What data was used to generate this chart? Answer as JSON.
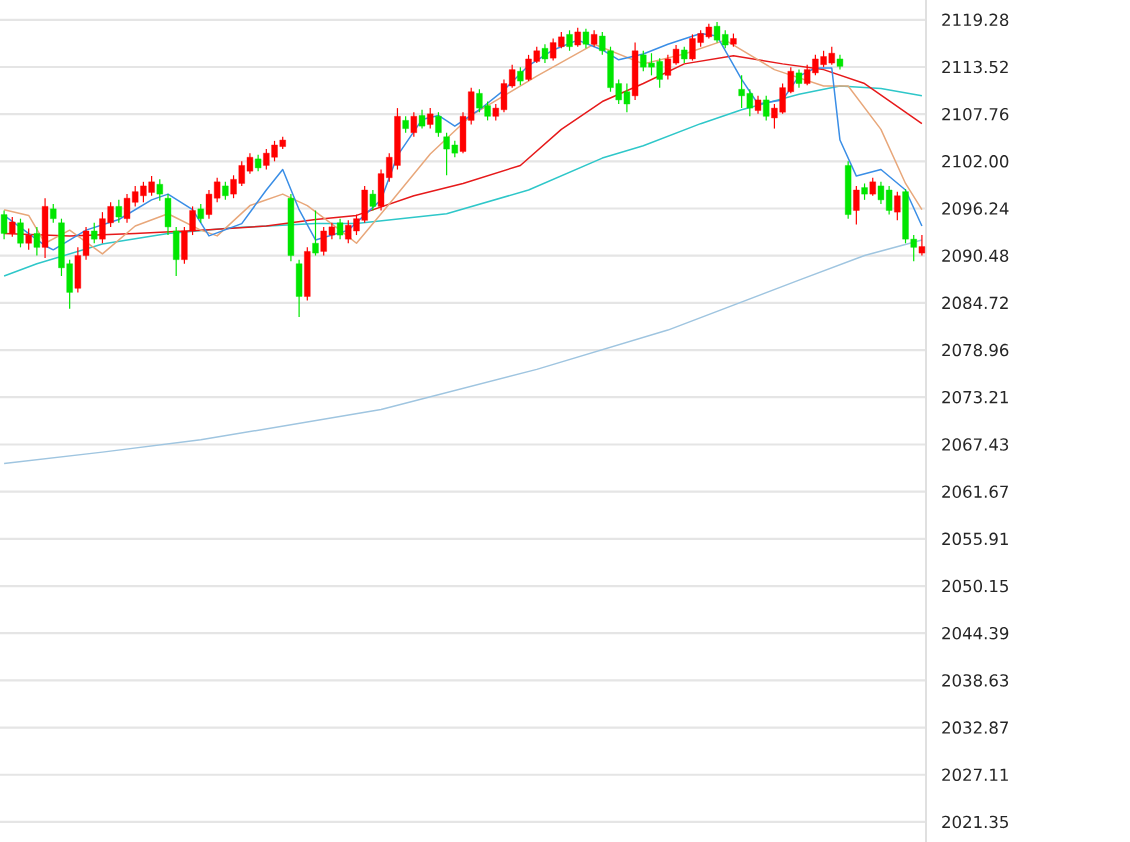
{
  "chart_data": {
    "type": "candlestick",
    "categories": [
      null,
      null,
      null,
      null,
      null,
      null,
      null,
      null,
      null,
      null,
      null,
      null,
      null,
      null,
      null,
      null,
      null,
      null,
      null,
      null,
      null,
      null,
      null,
      null,
      null,
      null,
      null,
      null,
      null,
      null,
      null,
      null,
      null,
      null,
      null,
      null,
      null,
      null,
      null,
      null,
      null,
      null,
      null,
      null,
      null,
      null,
      null,
      null,
      null,
      null,
      null,
      null,
      null,
      null,
      null,
      null,
      null,
      null,
      null,
      null,
      null,
      null,
      null,
      null,
      null,
      null,
      null,
      null,
      null,
      null,
      null,
      null,
      null,
      null,
      null,
      null,
      null,
      null,
      null,
      null,
      null,
      null,
      null,
      null,
      null,
      null,
      null,
      null,
      null,
      null,
      null,
      null,
      null,
      null,
      null,
      null,
      null,
      null,
      null,
      null,
      null,
      null,
      null,
      null,
      null,
      null,
      null,
      null,
      null,
      null,
      null,
      null,
      null
    ],
    "colors": [
      "#00e600",
      "#ff0000",
      "#00e600",
      "#ff0000",
      "#00e600",
      "#ff0000",
      "#00e600",
      "#00e600",
      "#00e600",
      "#ff0000",
      "#ff0000",
      "#00e600",
      "#ff0000",
      "#ff0000",
      "#00e600",
      "#ff0000",
      "#ff0000",
      "#ff0000",
      "#ff0000",
      "#00e600",
      "#00e600",
      "#00e600",
      "#ff0000",
      "#ff0000",
      "#00e600",
      "#ff0000",
      "#ff0000",
      "#00e600",
      "#ff0000",
      "#ff0000",
      "#ff0000",
      "#00e600",
      "#ff0000",
      "#ff0000",
      "#ff0000",
      "#00e600",
      "#00e600",
      "#ff0000",
      "#00e600",
      "#ff0000",
      "#ff0000",
      "#00e600",
      "#ff0000",
      "#ff0000",
      "#ff0000",
      "#00e600",
      "#ff0000",
      "#ff0000",
      "#ff0000",
      "#00e600",
      "#ff0000",
      "#00e600",
      "#ff0000",
      "#00e600",
      "#00e600",
      "#00e600",
      "#ff0000",
      "#ff0000",
      "#00e600",
      "#00e600",
      "#ff0000",
      "#ff0000",
      "#ff0000",
      "#00e600",
      "#ff0000",
      "#ff0000",
      "#00e600",
      "#ff0000",
      "#ff0000",
      "#00e600",
      "#ff0000",
      "#00e600",
      "#ff0000",
      "#00e600",
      "#00e600",
      "#00e600",
      "#00e600",
      "#ff0000",
      "#00e600",
      "#00e600",
      "#00e600",
      "#ff0000",
      "#ff0000",
      "#00e600",
      "#ff0000",
      "#ff0000",
      "#ff0000",
      "#00e600",
      "#00e600",
      "#ff0000",
      "#00e600",
      "#00e600",
      "#ff0000",
      "#00e600",
      "#ff0000",
      "#ff0000",
      "#ff0000",
      "#00e600",
      "#ff0000",
      "#ff0000",
      "#ff0000",
      "#ff0000",
      "#00e600",
      "#00e600",
      "#ff0000",
      "#00e600",
      "#ff0000",
      "#00e600",
      "#00e600",
      "#ff0000",
      "#00e600",
      "#00e600",
      "#ff0000"
    ],
    "ohlc": [
      [
        2095.5,
        2096.0,
        2092.5,
        2093.2
      ],
      [
        2093.2,
        2095.2,
        2092.8,
        2094.6
      ],
      [
        2094.5,
        2095.0,
        2091.5,
        2092.0
      ],
      [
        2092.0,
        2093.8,
        2091.2,
        2093.0
      ],
      [
        2093.2,
        2094.0,
        2090.5,
        2091.5
      ],
      [
        2091.5,
        2097.5,
        2090.2,
        2096.5
      ],
      [
        2096.2,
        2096.8,
        2094.5,
        2095.0
      ],
      [
        2094.5,
        2095.0,
        2088.0,
        2089.0
      ],
      [
        2089.5,
        2090.0,
        2084.0,
        2086.0
      ],
      [
        2086.5,
        2091.5,
        2086.0,
        2090.5
      ],
      [
        2090.5,
        2094.0,
        2090.0,
        2093.5
      ],
      [
        2093.5,
        2094.5,
        2092.0,
        2092.5
      ],
      [
        2092.5,
        2095.8,
        2092.0,
        2095.0
      ],
      [
        2094.5,
        2097.0,
        2094.0,
        2096.5
      ],
      [
        2096.5,
        2097.3,
        2094.5,
        2095.2
      ],
      [
        2095.0,
        2098.0,
        2094.5,
        2097.5
      ],
      [
        2097.0,
        2099.0,
        2096.5,
        2098.3
      ],
      [
        2097.8,
        2099.5,
        2097.0,
        2099.0
      ],
      [
        2098.2,
        2100.2,
        2097.8,
        2099.5
      ],
      [
        2099.2,
        2099.8,
        2097.2,
        2098.0
      ],
      [
        2097.5,
        2098.0,
        2093.0,
        2094.0
      ],
      [
        2093.5,
        2094.0,
        2088.0,
        2090.0
      ],
      [
        2090.0,
        2094.0,
        2089.5,
        2093.5
      ],
      [
        2093.5,
        2096.5,
        2093.0,
        2096.0
      ],
      [
        2096.2,
        2096.8,
        2094.5,
        2095.0
      ],
      [
        2095.5,
        2098.5,
        2095.0,
        2098.0
      ],
      [
        2097.5,
        2100.0,
        2097.0,
        2099.5
      ],
      [
        2099.0,
        2099.5,
        2097.3,
        2097.8
      ],
      [
        2098.0,
        2100.3,
        2097.5,
        2099.8
      ],
      [
        2099.3,
        2102.0,
        2099.0,
        2101.5
      ],
      [
        2100.8,
        2103.0,
        2100.5,
        2102.5
      ],
      [
        2102.3,
        2102.8,
        2100.8,
        2101.2
      ],
      [
        2101.5,
        2103.5,
        2101.0,
        2103.0
      ],
      [
        2102.5,
        2104.5,
        2102.0,
        2104.0
      ],
      [
        2103.8,
        2105.0,
        2103.5,
        2104.6
      ],
      [
        2097.5,
        2098.0,
        2089.8,
        2090.5
      ],
      [
        2089.5,
        2090.0,
        2083.0,
        2085.5
      ],
      [
        2085.5,
        2091.5,
        2085.0,
        2091.0
      ],
      [
        2092.0,
        2096.0,
        2090.5,
        2090.8
      ],
      [
        2091.0,
        2094.0,
        2090.5,
        2093.5
      ],
      [
        2093.0,
        2094.5,
        2092.5,
        2094.0
      ],
      [
        2094.5,
        2095.0,
        2092.5,
        2093.0
      ],
      [
        2092.5,
        2094.8,
        2092.0,
        2094.2
      ],
      [
        2093.5,
        2095.5,
        2093.0,
        2095.0
      ],
      [
        2094.8,
        2099.0,
        2094.5,
        2098.5
      ],
      [
        2098.0,
        2098.5,
        2096.0,
        2096.5
      ],
      [
        2096.5,
        2101.0,
        2096.0,
        2100.5
      ],
      [
        2100.0,
        2103.0,
        2099.5,
        2102.5
      ],
      [
        2101.5,
        2108.5,
        2101.0,
        2107.5
      ],
      [
        2107.0,
        2107.5,
        2105.5,
        2106.0
      ],
      [
        2105.5,
        2108.0,
        2105.0,
        2107.5
      ],
      [
        2107.6,
        2108.3,
        2106.0,
        2106.3
      ],
      [
        2106.5,
        2108.5,
        2106.0,
        2107.8
      ],
      [
        2107.5,
        2108.0,
        2105.0,
        2105.5
      ],
      [
        2105.0,
        2105.5,
        2100.3,
        2103.5
      ],
      [
        2104.0,
        2104.5,
        2102.5,
        2103.0
      ],
      [
        2103.2,
        2108.0,
        2103.0,
        2107.5
      ],
      [
        2107.0,
        2111.0,
        2106.5,
        2110.5
      ],
      [
        2110.3,
        2110.8,
        2108.0,
        2108.5
      ],
      [
        2108.8,
        2109.3,
        2107.0,
        2107.5
      ],
      [
        2107.5,
        2109.0,
        2107.0,
        2108.5
      ],
      [
        2108.3,
        2112.0,
        2108.0,
        2111.5
      ],
      [
        2111.2,
        2113.8,
        2111.0,
        2113.2
      ],
      [
        2113.0,
        2113.5,
        2111.3,
        2111.8
      ],
      [
        2112.0,
        2115.0,
        2111.8,
        2114.5
      ],
      [
        2114.2,
        2116.0,
        2114.0,
        2115.5
      ],
      [
        2115.8,
        2116.3,
        2114.0,
        2114.5
      ],
      [
        2114.6,
        2117.0,
        2114.3,
        2116.5
      ],
      [
        2116.0,
        2117.8,
        2115.8,
        2117.2
      ],
      [
        2117.5,
        2118.0,
        2115.5,
        2116.0
      ],
      [
        2116.2,
        2118.3,
        2116.0,
        2117.8
      ],
      [
        2117.8,
        2118.2,
        2115.8,
        2116.3
      ],
      [
        2116.3,
        2118.0,
        2116.0,
        2117.5
      ],
      [
        2117.3,
        2117.8,
        2115.0,
        2115.5
      ],
      [
        2115.5,
        2116.0,
        2110.5,
        2111.0
      ],
      [
        2111.5,
        2112.0,
        2109.0,
        2109.5
      ],
      [
        2110.5,
        2111.5,
        2108.0,
        2109.0
      ],
      [
        2110.0,
        2116.5,
        2109.5,
        2115.5
      ],
      [
        2115.0,
        2115.5,
        2113.0,
        2113.5
      ],
      [
        2114.0,
        2115.2,
        2112.5,
        2113.5
      ],
      [
        2114.2,
        2114.6,
        2111.0,
        2112.0
      ],
      [
        2112.5,
        2115.0,
        2112.0,
        2114.5
      ],
      [
        2114.0,
        2116.2,
        2113.8,
        2115.7
      ],
      [
        2115.6,
        2116.0,
        2114.0,
        2114.5
      ],
      [
        2114.5,
        2117.5,
        2114.3,
        2117.0
      ],
      [
        2116.5,
        2118.0,
        2116.0,
        2117.6
      ],
      [
        2117.2,
        2118.8,
        2117.0,
        2118.4
      ],
      [
        2118.5,
        2119.0,
        2116.5,
        2116.8
      ],
      [
        2117.5,
        2118.0,
        2115.8,
        2116.2
      ],
      [
        2116.3,
        2117.6,
        2116.0,
        2117.0
      ],
      [
        2110.8,
        2112.5,
        2108.5,
        2110.0
      ],
      [
        2110.3,
        2110.8,
        2107.5,
        2108.5
      ],
      [
        2108.2,
        2110.0,
        2107.8,
        2109.5
      ],
      [
        2109.5,
        2110.0,
        2107.0,
        2107.5
      ],
      [
        2107.3,
        2109.0,
        2106.0,
        2108.5
      ],
      [
        2108.0,
        2111.5,
        2107.8,
        2111.0
      ],
      [
        2110.5,
        2113.5,
        2110.3,
        2113.0
      ],
      [
        2112.8,
        2113.2,
        2111.0,
        2111.5
      ],
      [
        2111.5,
        2113.8,
        2111.3,
        2113.2
      ],
      [
        2112.8,
        2115.0,
        2112.5,
        2114.5
      ],
      [
        2113.8,
        2115.5,
        2113.5,
        2114.8
      ],
      [
        2114.0,
        2116.0,
        2113.8,
        2115.2
      ],
      [
        2114.5,
        2115.0,
        2113.2,
        2113.6
      ],
      [
        2101.5,
        2102.0,
        2095.0,
        2095.5
      ],
      [
        2096.0,
        2099.0,
        2094.3,
        2098.5
      ],
      [
        2098.8,
        2099.3,
        2097.3,
        2098.0
      ],
      [
        2098.0,
        2100.0,
        2097.8,
        2099.5
      ],
      [
        2099.0,
        2099.5,
        2096.8,
        2097.3
      ],
      [
        2098.5,
        2099.0,
        2095.5,
        2096.0
      ],
      [
        2095.8,
        2098.3,
        2094.8,
        2097.8
      ],
      [
        2098.3,
        2098.6,
        2092.0,
        2092.5
      ],
      [
        2092.5,
        2093.0,
        2089.8,
        2091.5
      ],
      [
        2090.8,
        2093.0,
        2090.5,
        2091.6
      ]
    ],
    "series": [
      {
        "type": "line",
        "color": "#9fc5e0",
        "values": [
          2065.1,
          null,
          null,
          null,
          null,
          null,
          null,
          null,
          null,
          null,
          null,
          null,
          2066.5,
          null,
          null,
          null,
          null,
          null,
          null,
          null,
          null,
          null,
          null,
          null,
          2068.0,
          null,
          null,
          null,
          null,
          null,
          null,
          null,
          null,
          null,
          null,
          null,
          null,
          null,
          null,
          null,
          null,
          null,
          null,
          null,
          null,
          null,
          2071.7,
          null,
          null,
          null,
          null,
          null,
          null,
          null,
          null,
          null,
          null,
          null,
          null,
          null,
          null,
          null,
          null,
          null,
          null,
          2076.6,
          null,
          null,
          null,
          null,
          null,
          null,
          null,
          null,
          null,
          null,
          null,
          null,
          null,
          null,
          null,
          2081.4,
          null,
          null,
          null,
          null,
          null,
          null,
          null,
          null,
          null,
          null,
          null,
          null,
          null,
          null,
          null,
          2087.5,
          null,
          null,
          null,
          null,
          null,
          null,
          null,
          2090.5,
          null,
          null,
          null,
          null,
          null,
          null,
          2092.4
        ]
      },
      {
        "type": "line",
        "color": "#2ec7c9",
        "values": [
          2088.0,
          null,
          null,
          null,
          2089.5,
          null,
          null,
          null,
          null,
          null,
          null,
          null,
          2091.9,
          null,
          null,
          null,
          null,
          null,
          null,
          null,
          2093.2,
          null,
          null,
          null,
          null,
          null,
          null,
          null,
          2093.9,
          null,
          null,
          null,
          null,
          null,
          null,
          null,
          null,
          null,
          2094.4,
          null,
          null,
          null,
          null,
          2094.4,
          null,
          null,
          null,
          null,
          null,
          null,
          null,
          null,
          null,
          null,
          2095.6,
          null,
          null,
          null,
          null,
          null,
          null,
          null,
          null,
          null,
          2098.5,
          null,
          null,
          null,
          null,
          null,
          null,
          null,
          null,
          2102.4,
          null,
          null,
          null,
          null,
          2103.9,
          null,
          null,
          null,
          null,
          null,
          null,
          2106.6,
          null,
          null,
          null,
          null,
          2108.3,
          null,
          null,
          null,
          null,
          null,
          null,
          2110.2,
          null,
          null,
          null,
          null,
          2111.2,
          null,
          null,
          null,
          null,
          2110.9,
          null,
          null,
          null,
          null,
          2110.0
        ]
      },
      {
        "type": "line",
        "color": "#e6191a",
        "values": [
          2093.2,
          null,
          null,
          null,
          null,
          null,
          null,
          null,
          2092.9,
          null,
          null,
          null,
          null,
          null,
          null,
          null,
          2093.2,
          null,
          null,
          null,
          null,
          null,
          null,
          null,
          2093.6,
          null,
          null,
          null,
          null,
          null,
          null,
          null,
          2094.1,
          null,
          null,
          null,
          null,
          null,
          2094.9,
          null,
          null,
          null,
          null,
          2095.4,
          null,
          null,
          null,
          null,
          null,
          null,
          2097.8,
          null,
          null,
          null,
          null,
          null,
          2099.3,
          null,
          null,
          null,
          null,
          null,
          null,
          2101.5,
          null,
          null,
          null,
          null,
          2105.9,
          null,
          null,
          null,
          null,
          2109.3,
          null,
          null,
          null,
          null,
          2111.5,
          null,
          null,
          null,
          null,
          2113.9,
          null,
          null,
          null,
          null,
          null,
          2114.9,
          null,
          null,
          null,
          null,
          null,
          2113.9,
          null,
          null,
          null,
          null,
          2113.2,
          null,
          null,
          null,
          null,
          2111.5,
          null,
          null,
          null,
          null,
          null,
          null,
          2106.6
        ]
      },
      {
        "type": "line",
        "color": "#e8a77a",
        "values": [
          2096.1,
          null,
          null,
          2095.4,
          null,
          2092.0,
          null,
          null,
          2093.6,
          null,
          null,
          null,
          2090.7,
          null,
          null,
          null,
          2094.1,
          null,
          null,
          null,
          2095.6,
          null,
          null,
          null,
          2093.6,
          null,
          2092.9,
          null,
          null,
          null,
          2096.6,
          null,
          null,
          null,
          2098.0,
          null,
          null,
          2096.6,
          null,
          null,
          null,
          2093.6,
          null,
          2092.0,
          null,
          null,
          null,
          2096.8,
          null,
          null,
          null,
          null,
          2102.9,
          null,
          null,
          null,
          null,
          2107.6,
          null,
          null,
          null,
          null,
          null,
          null,
          null,
          2112.4,
          null,
          null,
          null,
          null,
          null,
          null,
          2116.3,
          null,
          null,
          null,
          null,
          null,
          2113.9,
          null,
          null,
          null,
          null,
          2115.1,
          null,
          null,
          null,
          null,
          2116.8,
          null,
          null,
          null,
          null,
          null,
          2113.2,
          null,
          null,
          null,
          null,
          null,
          2111.2,
          null,
          null,
          2111.2,
          null,
          null,
          null,
          2105.9,
          null,
          null,
          2099.3,
          null,
          2096.1
        ]
      },
      {
        "type": "line",
        "color": "#3a8ee6",
        "values": [
          2095.4,
          null,
          null,
          null,
          null,
          2091.7,
          2091.2,
          null,
          null,
          null,
          2093.6,
          null,
          null,
          null,
          2094.9,
          null,
          null,
          null,
          2097.3,
          null,
          2098.0,
          null,
          null,
          2096.1,
          null,
          2092.9,
          null,
          null,
          null,
          2094.4,
          null,
          null,
          2098.5,
          null,
          2101.0,
          null,
          2096.1,
          null,
          2092.4,
          null,
          null,
          null,
          2093.6,
          null,
          null,
          null,
          2097.3,
          null,
          2102.7,
          null,
          null,
          2107.1,
          null,
          2107.6,
          null,
          2106.3,
          null,
          null,
          2108.3,
          null,
          null,
          2110.7,
          null,
          null,
          2113.7,
          null,
          null,
          2115.6,
          null,
          null,
          2116.8,
          null,
          null,
          2115.6,
          null,
          2114.4,
          null,
          null,
          2115.1,
          null,
          null,
          2116.3,
          null,
          null,
          null,
          2117.6,
          null,
          2117.3,
          null,
          null,
          2112.0,
          null,
          2109.0,
          null,
          null,
          2109.5,
          null,
          2112.4,
          null,
          2113.4,
          null,
          2113.4,
          2104.6,
          null,
          2100.2,
          null,
          null,
          2101.0,
          null,
          null,
          2098.5,
          null,
          2094.1
        ]
      }
    ],
    "ylim": [
      2018.9,
      2121.7
    ],
    "yticks": [
      2021.35,
      2027.11,
      2032.87,
      2038.63,
      2044.39,
      2050.15,
      2055.91,
      2061.67,
      2067.43,
      2073.21,
      2078.96,
      2084.72,
      2090.48,
      2096.24,
      {
        "value": 2102.0,
        "label": "2102.00"
      },
      2107.76,
      2113.52,
      2119.28
    ],
    "grid": "y",
    "tick_labels": "y"
  }
}
